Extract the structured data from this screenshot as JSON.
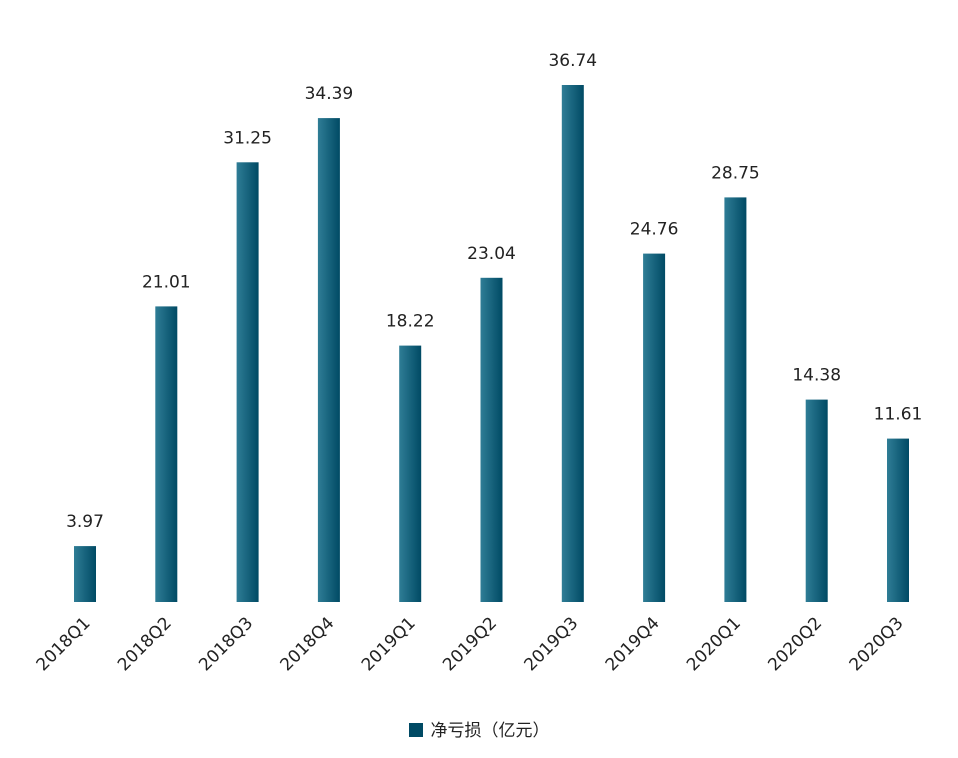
{
  "chart_data": {
    "type": "bar",
    "categories": [
      "2018Q1",
      "2018Q2",
      "2018Q3",
      "2018Q4",
      "2019Q1",
      "2019Q2",
      "2019Q3",
      "2019Q4",
      "2020Q1",
      "2020Q2",
      "2020Q3"
    ],
    "series": [
      {
        "name": "净亏损（亿元）",
        "values": [
          3.97,
          21.01,
          31.25,
          34.39,
          18.22,
          23.04,
          36.74,
          24.76,
          28.75,
          14.38,
          11.61
        ]
      }
    ],
    "value_labels": [
      "3.97",
      "21.01",
      "31.25",
      "34.39",
      "18.22",
      "23.04",
      "36.74",
      "24.76",
      "28.75",
      "14.38",
      "11.61"
    ],
    "title": "",
    "xlabel": "",
    "ylabel": "",
    "ylim": [
      0,
      36.74
    ],
    "grid": false,
    "legend_position": "bottom-center"
  },
  "colors": {
    "bar_dark": "#004a64",
    "bar_light": "#2f7d96",
    "text": "#222222"
  }
}
